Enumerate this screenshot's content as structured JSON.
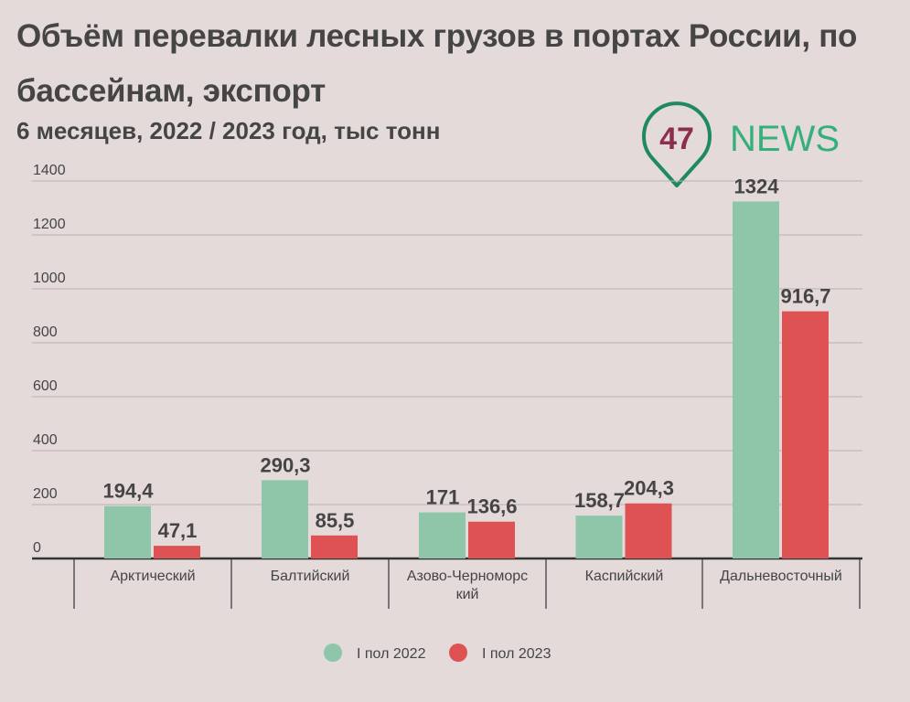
{
  "chart_data": {
    "type": "bar",
    "title": "Объём перевалки лесных грузов в портах России, по бассейнам, экспорт",
    "subtitle": "6 месяцев, 2022 / 2023 год, тыс тонн",
    "categories": [
      "Арктический",
      "Балтийский",
      "Азово-Черноморский",
      "Каспийский",
      "Дальневосточный"
    ],
    "series": [
      {
        "name": "I пол 2022",
        "color": "#8fc6a9",
        "values": [
          194.4,
          290.3,
          171,
          158.7,
          1324
        ],
        "labels": [
          "194,4",
          "290,3",
          "171",
          "158,7",
          "1324"
        ]
      },
      {
        "name": "I пол 2023",
        "color": "#de5254",
        "values": [
          47.1,
          85.5,
          136.6,
          204.3,
          916.7
        ],
        "labels": [
          "47,1",
          "85,5",
          "136,6",
          "204,3",
          "916,7"
        ]
      }
    ],
    "yticks": [
      0,
      200,
      400,
      600,
      800,
      1000,
      1200,
      1400
    ],
    "ylim": [
      0,
      1400
    ],
    "xlabel": "",
    "ylabel": "",
    "grid": true,
    "legend": "bottom-center"
  },
  "logo": {
    "number": "47",
    "text": "NEWS"
  }
}
